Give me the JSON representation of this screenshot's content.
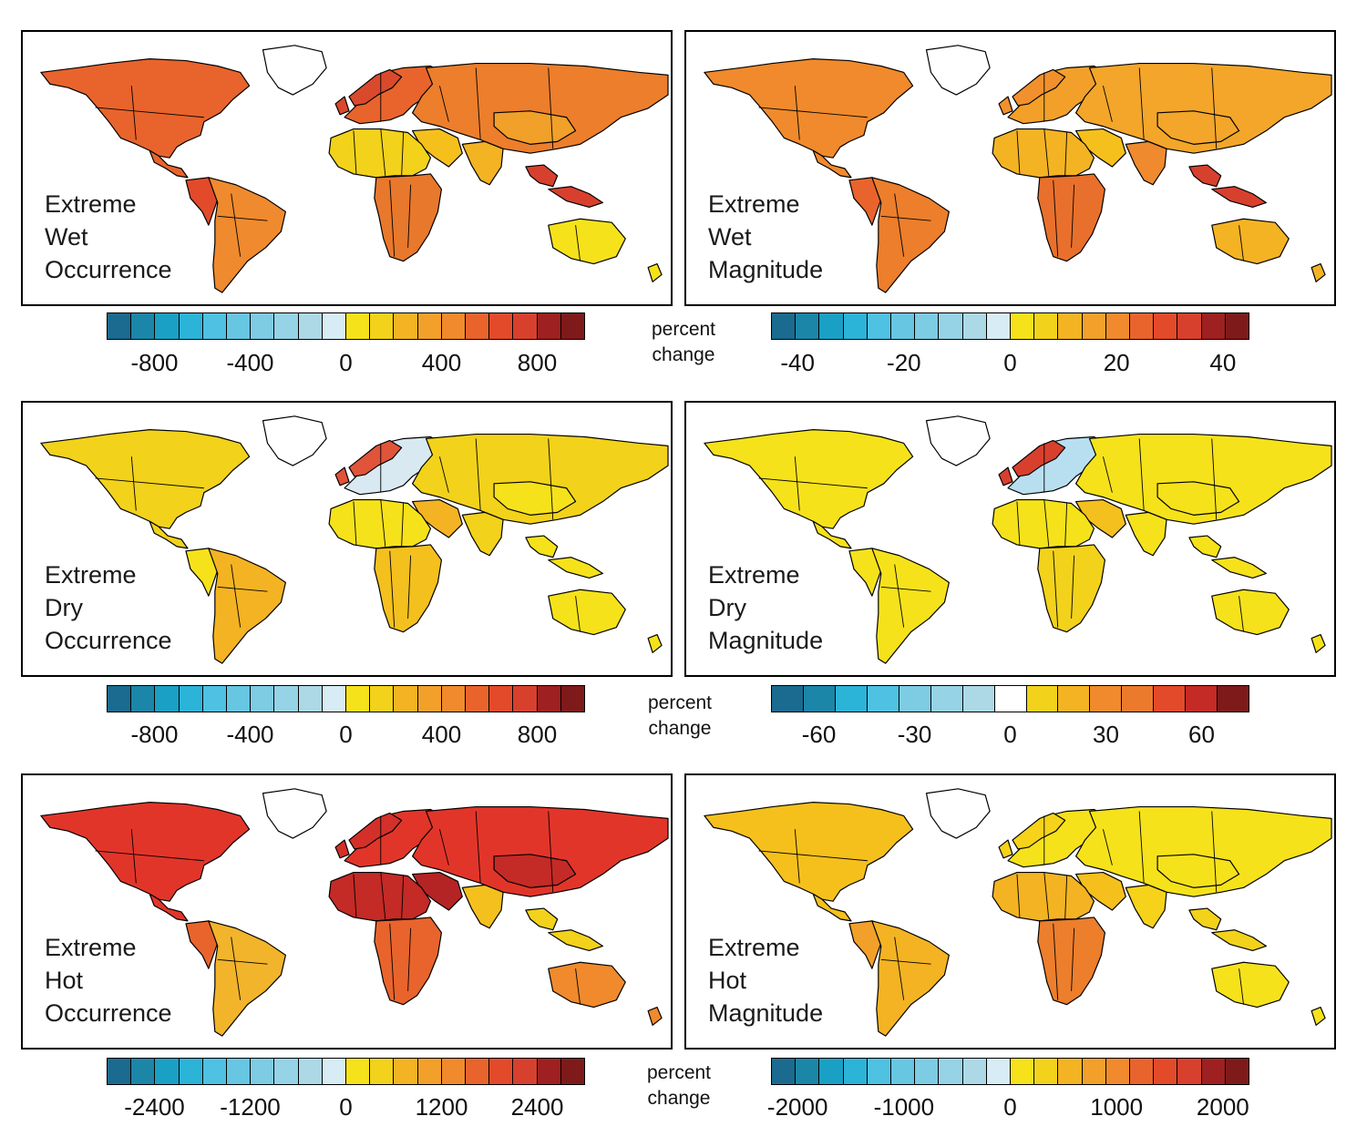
{
  "panels": [
    {
      "id": "wet-occ",
      "label": [
        "Extreme",
        "Wet",
        "Occurrence"
      ],
      "fills": {
        "na": "#e8642c",
        "sa": "#ef8a2e",
        "sa_w": "#e24a2a",
        "eu": "#e8642c",
        "eu_n": "#d94a2c",
        "af_n": "#f2d21a",
        "af_s": "#e8782c",
        "as": "#ec7e2c",
        "as_c": "#f1a02a",
        "me": "#f6c01c",
        "au": "#f6e21a",
        "ind": "#f4b322",
        "sea": "#d8402e",
        "grn": "#ffffff"
      }
    },
    {
      "id": "wet-mag",
      "label": [
        "Extreme",
        "Wet",
        "Magnitude"
      ],
      "fills": {
        "na": "#f08a2c",
        "sa": "#ec7e2c",
        "sa_w": "#e8642c",
        "eu": "#f2a02a",
        "eu_n": "#f1902c",
        "af_n": "#f4b322",
        "af_s": "#e8702c",
        "as": "#f3a62a",
        "as_c": "#f3a62a",
        "me": "#f6c01c",
        "au": "#f4b322",
        "ind": "#ef8a2e",
        "sea": "#d8402e",
        "grn": "#ffffff"
      }
    },
    {
      "id": "dry-occ",
      "label": [
        "Extreme",
        "Dry",
        "Occurrence"
      ],
      "fills": {
        "na": "#f2d21a",
        "sa": "#f4b322",
        "sa_w": "#f6e21a",
        "eu": "#d8e9f2",
        "eu_n": "#e0543a",
        "af_n": "#f6e21a",
        "af_s": "#f4c01e",
        "as": "#f2d21a",
        "as_c": "#f6e21a",
        "me": "#f4b322",
        "au": "#f6e21a",
        "ind": "#f2d21a",
        "sea": "#f6e21a",
        "grn": "#ffffff"
      }
    },
    {
      "id": "dry-mag",
      "label": [
        "Extreme",
        "Dry",
        "Magnitude"
      ],
      "fills": {
        "na": "#f6e21a",
        "sa": "#f6e21a",
        "sa_w": "#f6e21a",
        "eu": "#b8dff0",
        "eu_n": "#d8402e",
        "af_n": "#f6e21a",
        "af_s": "#f2d21a",
        "as": "#f6e21a",
        "as_c": "#f6e21a",
        "me": "#f4c01e",
        "au": "#f6e21a",
        "ind": "#f6e21a",
        "sea": "#f6e21a",
        "grn": "#ffffff"
      }
    },
    {
      "id": "hot-occ",
      "label": [
        "Extreme",
        "Hot",
        "Occurrence"
      ],
      "fills": {
        "na": "#e2352a",
        "sa": "#f2b42a",
        "sa_w": "#e8642c",
        "eu": "#e2352a",
        "eu_n": "#d4302a",
        "af_n": "#c42a26",
        "af_s": "#e8642c",
        "as": "#e2352a",
        "as_c": "#c42a26",
        "me": "#b42424",
        "au": "#f08a2c",
        "ind": "#f4c01e",
        "sea": "#f2d21a",
        "grn": "#ffffff"
      }
    },
    {
      "id": "hot-mag",
      "label": [
        "Extreme",
        "Hot",
        "Magnitude"
      ],
      "fills": {
        "na": "#f6c01c",
        "sa": "#f4b322",
        "sa_w": "#f2a02a",
        "eu": "#f6e21a",
        "eu_n": "#f6d21a",
        "af_n": "#f4b322",
        "af_s": "#ec7e2c",
        "as": "#f6e21a",
        "as_c": "#f6e21a",
        "me": "#f6c01c",
        "au": "#f6e21a",
        "ind": "#f6d21a",
        "sea": "#f2d21a",
        "grn": "#ffffff"
      }
    }
  ],
  "colorbars": [
    {
      "id": "cb-wet-occ",
      "swatches": 20,
      "ticks": [
        "-800",
        "-400",
        "0",
        "400",
        "800"
      ],
      "tick_values": [
        -800,
        -400,
        0,
        400,
        800
      ],
      "range": [
        -1000,
        1000
      ]
    },
    {
      "id": "cb-wet-mag",
      "swatches": 20,
      "ticks": [
        "-40",
        "-20",
        "0",
        "20",
        "40"
      ],
      "tick_values": [
        -40,
        -20,
        0,
        20,
        40
      ],
      "range": [
        -45,
        45
      ]
    },
    {
      "id": "cb-dry-occ",
      "swatches": 20,
      "ticks": [
        "-800",
        "-400",
        "0",
        "400",
        "800"
      ],
      "tick_values": [
        -800,
        -400,
        0,
        400,
        800
      ],
      "range": [
        -1000,
        1000
      ]
    },
    {
      "id": "cb-dry-mag",
      "swatches": 15,
      "ticks": [
        "-60",
        "-30",
        "0",
        "30",
        "60"
      ],
      "tick_values": [
        -60,
        -30,
        0,
        30,
        60
      ],
      "range": [
        -75,
        75
      ]
    },
    {
      "id": "cb-hot-occ",
      "swatches": 20,
      "ticks": [
        "-2400",
        "-1200",
        "0",
        "1200",
        "2400"
      ],
      "tick_values": [
        -2400,
        -1200,
        0,
        1200,
        2400
      ],
      "range": [
        -3000,
        3000
      ]
    },
    {
      "id": "cb-hot-mag",
      "swatches": 20,
      "ticks": [
        "-2000",
        "-1000",
        "0",
        "1000",
        "2000"
      ],
      "tick_values": [
        -2000,
        -1000,
        0,
        1000,
        2000
      ],
      "range": [
        -2250,
        2250
      ]
    }
  ],
  "units_label": [
    "percent",
    "change"
  ],
  "palette": {
    "negative": [
      "#1a6b8f",
      "#1b86a8",
      "#1aa0c4",
      "#2cb3d8",
      "#4fc1e2",
      "#67c6e2",
      "#7ecbe4",
      "#96d3e6",
      "#add8e6",
      "#d7ecf4"
    ],
    "positive": [
      "#f6e21a",
      "#f2d21a",
      "#f4c01e",
      "#f4b322",
      "#f2a02a",
      "#f08a2c",
      "#ec7a2c",
      "#e8642c",
      "#e24a2a",
      "#d8402e"
    ],
    "positive_dark": [
      "#c42a26",
      "#9e2020",
      "#7e1a1a"
    ]
  }
}
